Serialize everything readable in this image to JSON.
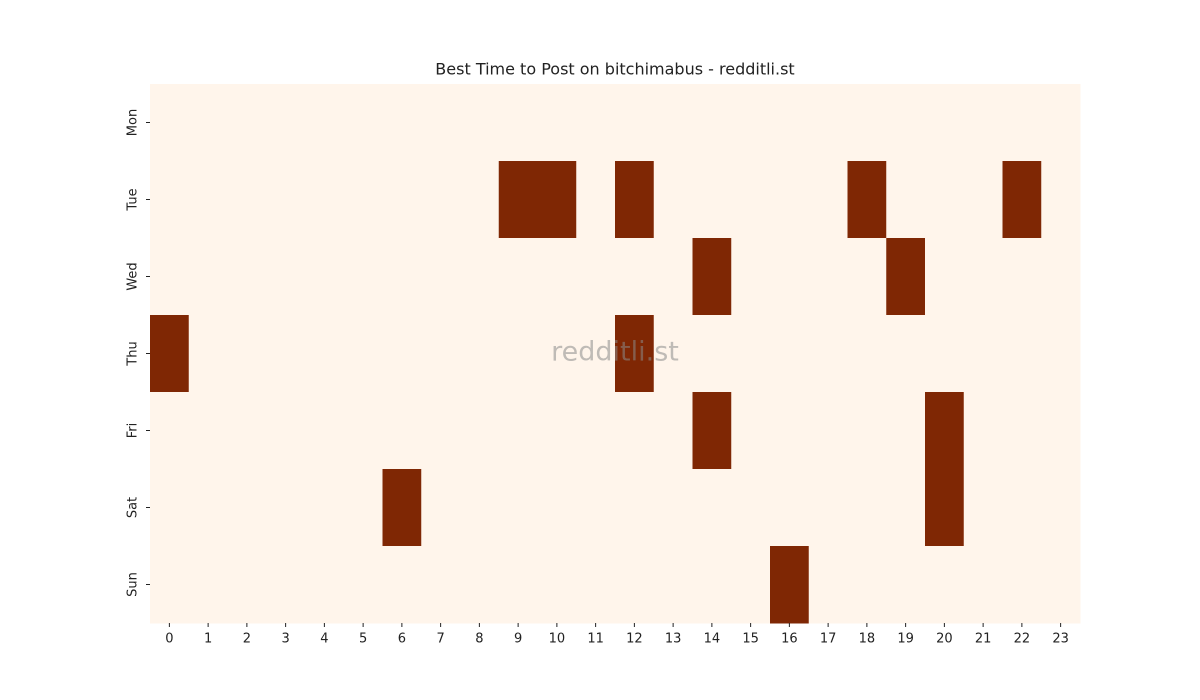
{
  "chart_data": {
    "type": "heatmap",
    "title": "Best Time to Post on bitchimabus - redditli.st",
    "watermark": "redditli.st",
    "rows": [
      "Mon",
      "Tue",
      "Wed",
      "Thu",
      "Fri",
      "Sat",
      "Sun"
    ],
    "columns": [
      0,
      1,
      2,
      3,
      4,
      5,
      6,
      7,
      8,
      9,
      10,
      11,
      12,
      13,
      14,
      15,
      16,
      17,
      18,
      19,
      20,
      21,
      22,
      23
    ],
    "values": [
      [
        0,
        0,
        0,
        0,
        0,
        0,
        0,
        0,
        0,
        0,
        0,
        0,
        0,
        0,
        0,
        0,
        0,
        0,
        0,
        0,
        0,
        0,
        0,
        0
      ],
      [
        0,
        0,
        0,
        0,
        0,
        0,
        0,
        0,
        0,
        1,
        1,
        0,
        1,
        0,
        0,
        0,
        0,
        0,
        1,
        0,
        0,
        0,
        1,
        0
      ],
      [
        0,
        0,
        0,
        0,
        0,
        0,
        0,
        0,
        0,
        0,
        0,
        0,
        0,
        0,
        1,
        0,
        0,
        0,
        0,
        1,
        0,
        0,
        0,
        0
      ],
      [
        1,
        0,
        0,
        0,
        0,
        0,
        0,
        0,
        0,
        0,
        0,
        0,
        1,
        0,
        0,
        0,
        0,
        0,
        0,
        0,
        0,
        0,
        0,
        0
      ],
      [
        0,
        0,
        0,
        0,
        0,
        0,
        0,
        0,
        0,
        0,
        0,
        0,
        0,
        0,
        1,
        0,
        0,
        0,
        0,
        0,
        1,
        0,
        0,
        0
      ],
      [
        0,
        0,
        0,
        0,
        0,
        0,
        1,
        0,
        0,
        0,
        0,
        0,
        0,
        0,
        0,
        0,
        0,
        0,
        0,
        0,
        1,
        0,
        0,
        0
      ],
      [
        0,
        0,
        0,
        0,
        0,
        0,
        0,
        0,
        0,
        0,
        0,
        0,
        0,
        0,
        0,
        0,
        1,
        0,
        0,
        0,
        0,
        0,
        0,
        0
      ]
    ],
    "colors": [
      "#fff5eb",
      "#7f2704"
    ]
  }
}
